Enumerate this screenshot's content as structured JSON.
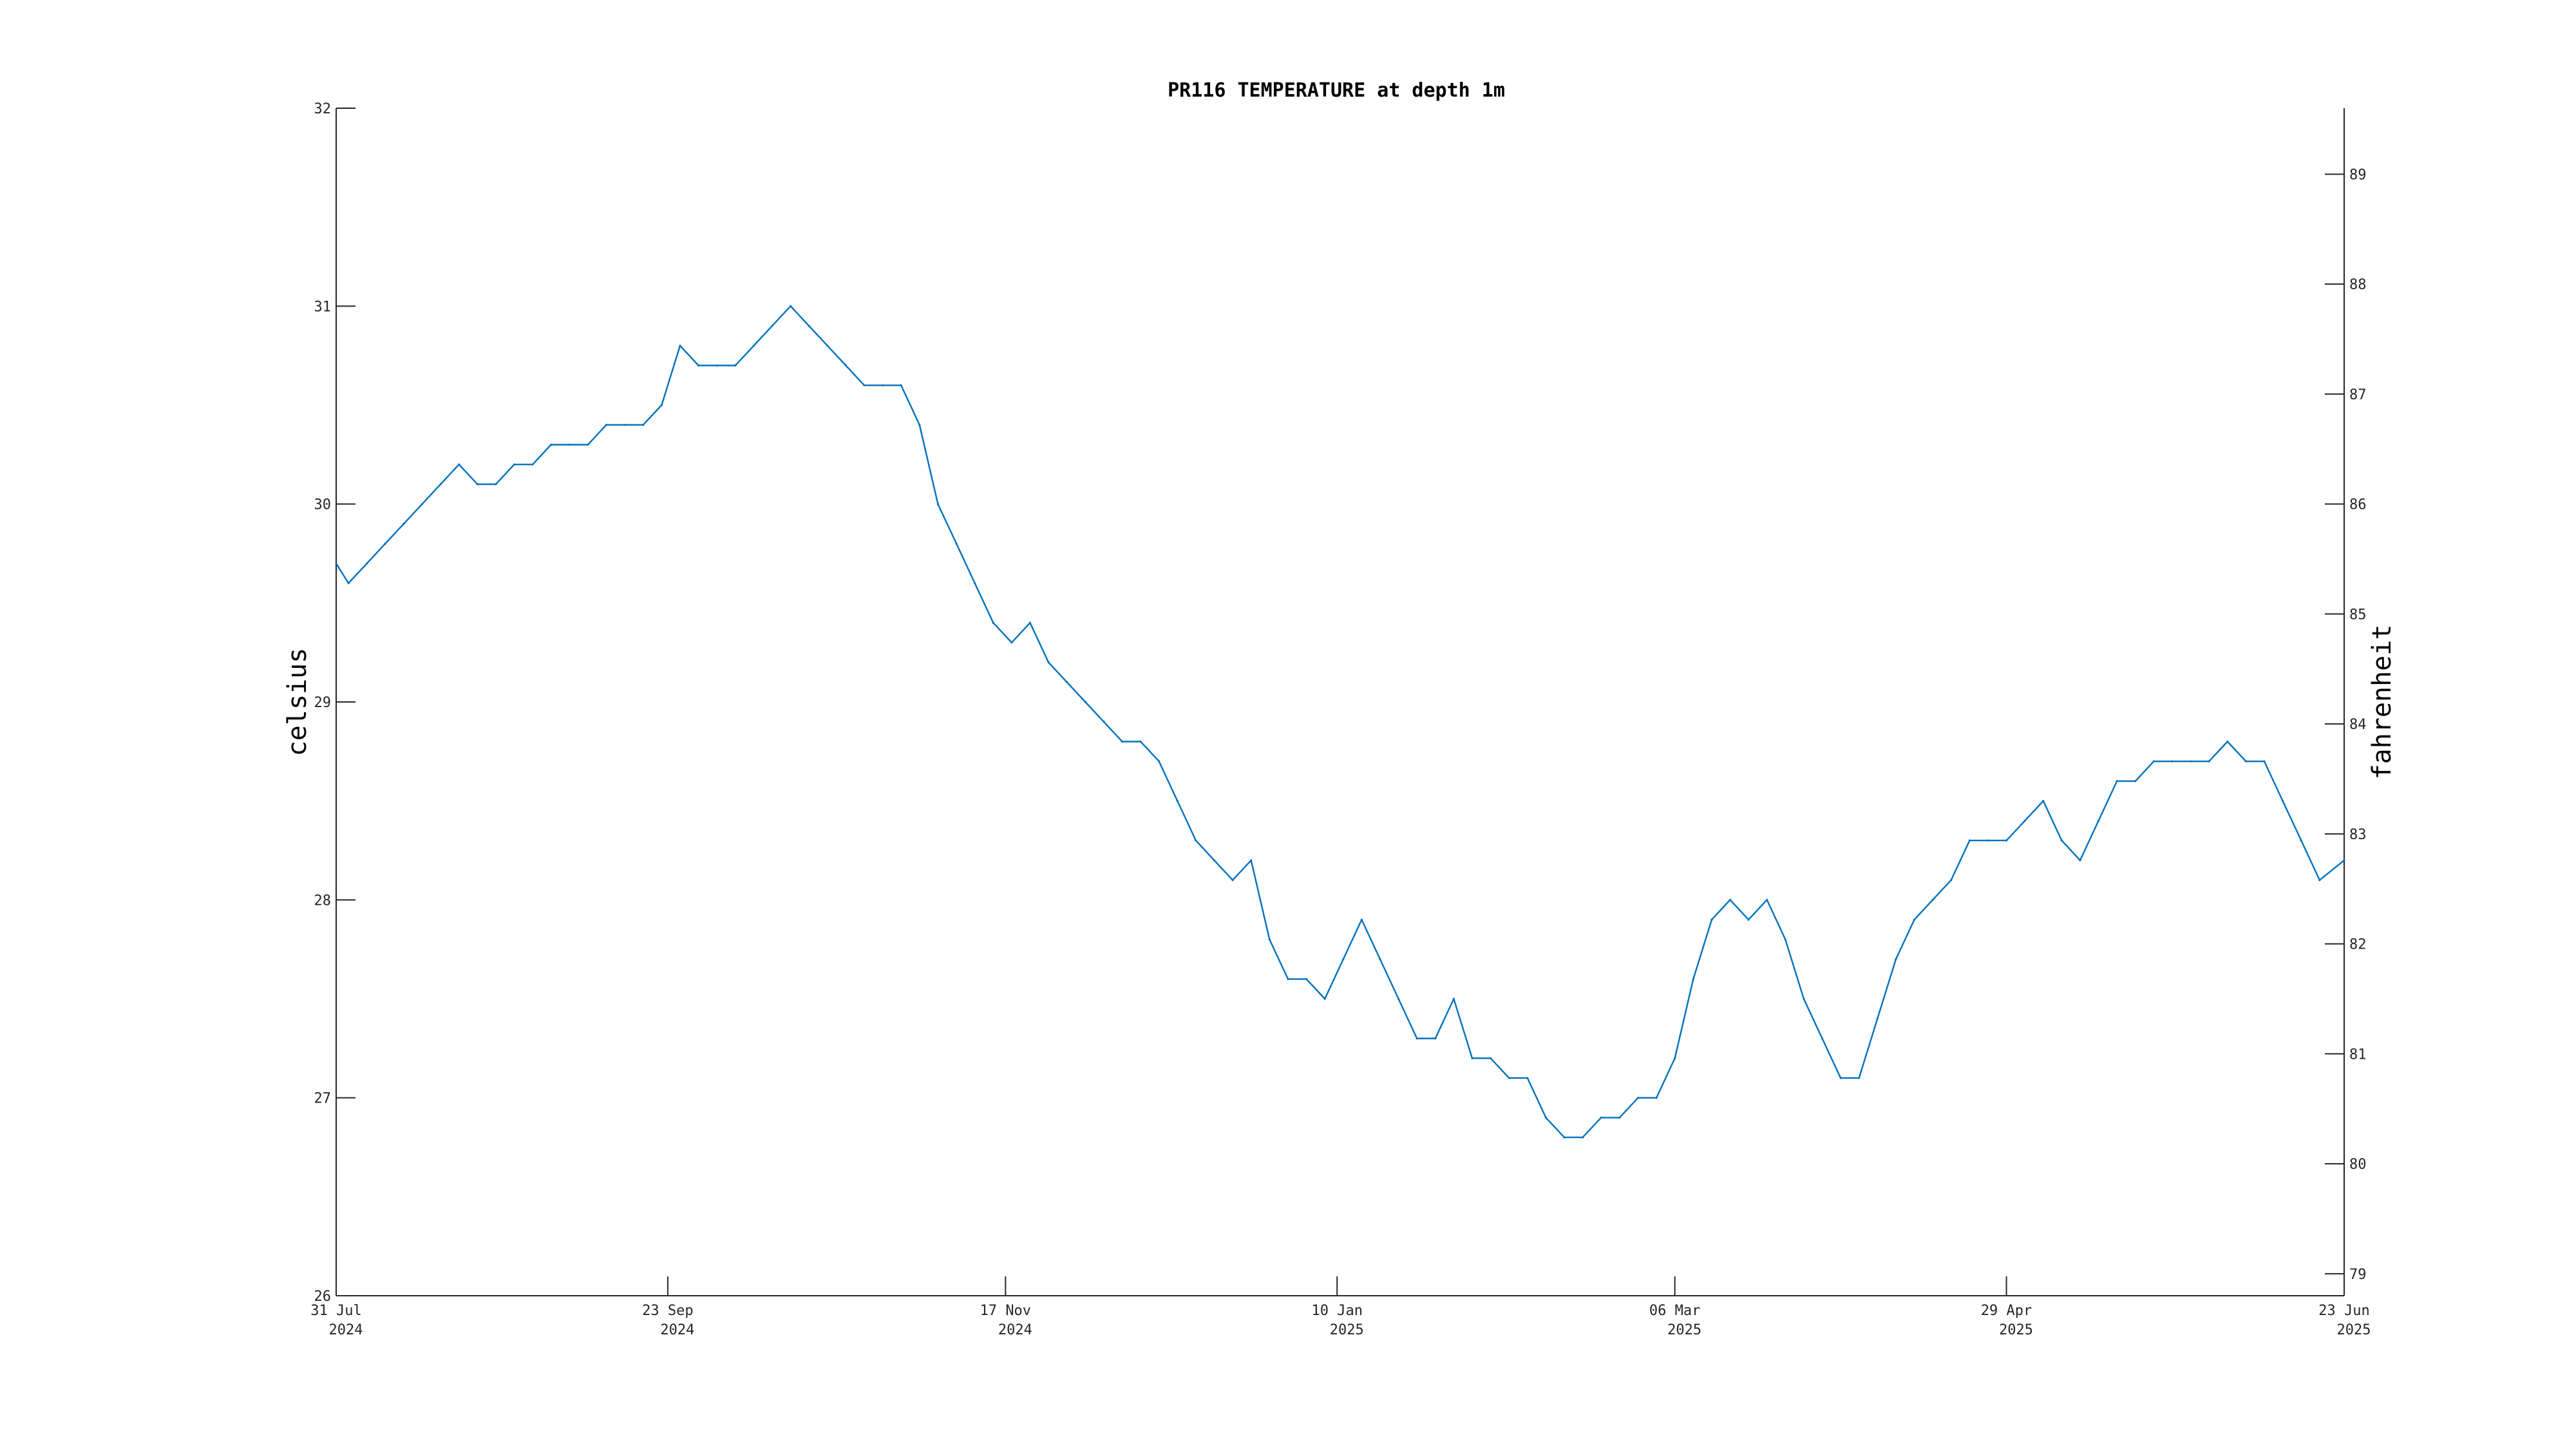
{
  "chart_data": {
    "type": "line",
    "title": "PR116 TEMPERATURE at depth 1m",
    "ylabel": "celsius",
    "ylabel_right": "fahrenheit",
    "xlabel": "",
    "grid": false,
    "legend": "none",
    "x_range": [
      "2024-07-31",
      "2025-06-23"
    ],
    "ylim": [
      26,
      32
    ],
    "ylim_right_celsius_equivalent": [
      26,
      32
    ],
    "y_ticks": [
      26,
      27,
      28,
      29,
      30,
      31,
      32
    ],
    "y_right_ticks": [
      79,
      80,
      81,
      82,
      83,
      84,
      85,
      86,
      87,
      88,
      89
    ],
    "x_ticks": [
      {
        "date": "2024-07-31",
        "line1": "31 Jul",
        "line2": "2024"
      },
      {
        "date": "2024-09-23",
        "line1": "23 Sep",
        "line2": "2024"
      },
      {
        "date": "2024-11-17",
        "line1": "17 Nov",
        "line2": "2024"
      },
      {
        "date": "2025-01-10",
        "line1": "10 Jan",
        "line2": "2025"
      },
      {
        "date": "2025-03-06",
        "line1": "06 Mar",
        "line2": "2025"
      },
      {
        "date": "2025-04-29",
        "line1": "29 Apr",
        "line2": "2025"
      },
      {
        "date": "2025-06-23",
        "line1": "23 Jun",
        "line2": "2025"
      }
    ],
    "series": [
      {
        "color": "#0072bd",
        "points": [
          [
            "2024-07-31",
            29.7
          ],
          [
            "2024-08-02",
            29.6
          ],
          [
            "2024-08-05",
            29.7
          ],
          [
            "2024-08-08",
            29.8
          ],
          [
            "2024-08-11",
            29.9
          ],
          [
            "2024-08-14",
            30.0
          ],
          [
            "2024-08-17",
            30.1
          ],
          [
            "2024-08-20",
            30.2
          ],
          [
            "2024-08-23",
            30.1
          ],
          [
            "2024-08-26",
            30.1
          ],
          [
            "2024-08-29",
            30.2
          ],
          [
            "2024-09-01",
            30.2
          ],
          [
            "2024-09-04",
            30.3
          ],
          [
            "2024-09-07",
            30.3
          ],
          [
            "2024-09-10",
            30.3
          ],
          [
            "2024-09-13",
            30.4
          ],
          [
            "2024-09-16",
            30.4
          ],
          [
            "2024-09-19",
            30.4
          ],
          [
            "2024-09-22",
            30.5
          ],
          [
            "2024-09-25",
            30.8
          ],
          [
            "2024-09-28",
            30.7
          ],
          [
            "2024-10-01",
            30.7
          ],
          [
            "2024-10-04",
            30.7
          ],
          [
            "2024-10-07",
            30.8
          ],
          [
            "2024-10-10",
            30.9
          ],
          [
            "2024-10-13",
            31.0
          ],
          [
            "2024-10-16",
            30.9
          ],
          [
            "2024-10-19",
            30.8
          ],
          [
            "2024-10-22",
            30.7
          ],
          [
            "2024-10-25",
            30.6
          ],
          [
            "2024-10-28",
            30.6
          ],
          [
            "2024-10-31",
            30.6
          ],
          [
            "2024-11-03",
            30.4
          ],
          [
            "2024-11-06",
            30.0
          ],
          [
            "2024-11-09",
            29.8
          ],
          [
            "2024-11-12",
            29.6
          ],
          [
            "2024-11-15",
            29.4
          ],
          [
            "2024-11-18",
            29.3
          ],
          [
            "2024-11-21",
            29.4
          ],
          [
            "2024-11-24",
            29.2
          ],
          [
            "2024-11-27",
            29.1
          ],
          [
            "2024-11-30",
            29.0
          ],
          [
            "2024-12-03",
            28.9
          ],
          [
            "2024-12-06",
            28.8
          ],
          [
            "2024-12-09",
            28.8
          ],
          [
            "2024-12-12",
            28.7
          ],
          [
            "2024-12-15",
            28.5
          ],
          [
            "2024-12-18",
            28.3
          ],
          [
            "2024-12-21",
            28.2
          ],
          [
            "2024-12-24",
            28.1
          ],
          [
            "2024-12-27",
            28.2
          ],
          [
            "2024-12-30",
            27.8
          ],
          [
            "2025-01-02",
            27.6
          ],
          [
            "2025-01-05",
            27.6
          ],
          [
            "2025-01-08",
            27.5
          ],
          [
            "2025-01-11",
            27.7
          ],
          [
            "2025-01-14",
            27.9
          ],
          [
            "2025-01-17",
            27.7
          ],
          [
            "2025-01-20",
            27.5
          ],
          [
            "2025-01-23",
            27.3
          ],
          [
            "2025-01-26",
            27.3
          ],
          [
            "2025-01-29",
            27.5
          ],
          [
            "2025-02-01",
            27.2
          ],
          [
            "2025-02-04",
            27.2
          ],
          [
            "2025-02-07",
            27.1
          ],
          [
            "2025-02-10",
            27.1
          ],
          [
            "2025-02-13",
            26.9
          ],
          [
            "2025-02-16",
            26.8
          ],
          [
            "2025-02-19",
            26.8
          ],
          [
            "2025-02-22",
            26.9
          ],
          [
            "2025-02-25",
            26.9
          ],
          [
            "2025-02-28",
            27.0
          ],
          [
            "2025-03-03",
            27.0
          ],
          [
            "2025-03-06",
            27.2
          ],
          [
            "2025-03-09",
            27.6
          ],
          [
            "2025-03-12",
            27.9
          ],
          [
            "2025-03-15",
            28.0
          ],
          [
            "2025-03-18",
            27.9
          ],
          [
            "2025-03-21",
            28.0
          ],
          [
            "2025-03-24",
            27.8
          ],
          [
            "2025-03-27",
            27.5
          ],
          [
            "2025-03-30",
            27.3
          ],
          [
            "2025-04-02",
            27.1
          ],
          [
            "2025-04-05",
            27.1
          ],
          [
            "2025-04-08",
            27.4
          ],
          [
            "2025-04-11",
            27.7
          ],
          [
            "2025-04-14",
            27.9
          ],
          [
            "2025-04-17",
            28.0
          ],
          [
            "2025-04-20",
            28.1
          ],
          [
            "2025-04-23",
            28.3
          ],
          [
            "2025-04-26",
            28.3
          ],
          [
            "2025-04-29",
            28.3
          ],
          [
            "2025-05-02",
            28.4
          ],
          [
            "2025-05-05",
            28.5
          ],
          [
            "2025-05-08",
            28.3
          ],
          [
            "2025-05-11",
            28.2
          ],
          [
            "2025-05-14",
            28.4
          ],
          [
            "2025-05-17",
            28.6
          ],
          [
            "2025-05-20",
            28.6
          ],
          [
            "2025-05-23",
            28.7
          ],
          [
            "2025-05-26",
            28.7
          ],
          [
            "2025-05-29",
            28.7
          ],
          [
            "2025-06-01",
            28.7
          ],
          [
            "2025-06-04",
            28.8
          ],
          [
            "2025-06-07",
            28.7
          ],
          [
            "2025-06-10",
            28.7
          ],
          [
            "2025-06-13",
            28.5
          ],
          [
            "2025-06-16",
            28.3
          ],
          [
            "2025-06-19",
            28.1
          ],
          [
            "2025-06-23",
            28.2
          ]
        ]
      }
    ]
  }
}
